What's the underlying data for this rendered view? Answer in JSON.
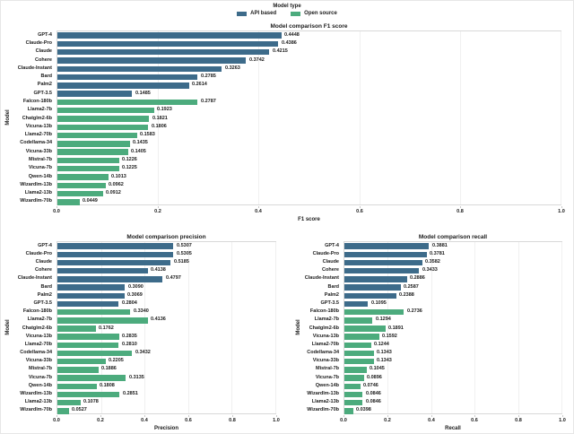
{
  "colors": {
    "api_based": "#3d6b8a",
    "open_source": "#4cab7d",
    "text": "#1a1a1a",
    "spine": "#d8d8d8",
    "grid": "#f0f0f0"
  },
  "legend": {
    "title": "Model type",
    "items": [
      {
        "label": "API based",
        "color": "#3d6b8a",
        "type": "api"
      },
      {
        "label": "Open source",
        "color": "#4cab7d",
        "type": "open"
      }
    ]
  },
  "chart_data": [
    {
      "type": "bar",
      "orientation": "horizontal",
      "title": "Model comparison F1 score",
      "xlabel": "F1 score",
      "ylabel": "Model",
      "xlim": [
        0,
        1
      ],
      "xticks": [
        "0.0",
        "0.2",
        "0.4",
        "0.6",
        "0.8",
        "1.0"
      ],
      "grid": true,
      "legend_position": "top-outside",
      "categories": [
        "GPT-4",
        "Claude-Pro",
        "Claude",
        "Cohere",
        "Claude-Instant",
        "Bard",
        "Palm2",
        "GPT-3.5",
        "Falcon-180b",
        "Llama2-7b",
        "Chatglm2-6b",
        "Vicuna-13b",
        "Llama2-70b",
        "Codellama-34",
        "Vicuna-33b",
        "Mistral-7b",
        "Vicuna-7b",
        "Qwen-14b",
        "Wizardlm-13b",
        "Llama2-13b",
        "Wizardlm-70b"
      ],
      "values": [
        0.4448,
        0.4386,
        0.4215,
        0.3742,
        0.3263,
        0.2785,
        0.2614,
        0.1485,
        0.2787,
        0.1923,
        0.1821,
        0.1806,
        0.1583,
        0.1435,
        0.1405,
        0.1226,
        0.1225,
        0.1013,
        0.0962,
        0.0912,
        0.0449
      ],
      "bar_types": [
        "api",
        "api",
        "api",
        "api",
        "api",
        "api",
        "api",
        "api",
        "open",
        "open",
        "open",
        "open",
        "open",
        "open",
        "open",
        "open",
        "open",
        "open",
        "open",
        "open",
        "open"
      ]
    },
    {
      "type": "bar",
      "orientation": "horizontal",
      "title": "Model comparison precision",
      "xlabel": "Precision",
      "ylabel": "Model",
      "xlim": [
        0,
        1
      ],
      "xticks": [
        "0.0",
        "0.2",
        "0.4",
        "0.6",
        "0.8",
        "1.0"
      ],
      "grid": true,
      "categories": [
        "GPT-4",
        "Claude-Pro",
        "Claude",
        "Cohere",
        "Claude-Instant",
        "Bard",
        "Palm2",
        "GPT-3.5",
        "Falcon-180b",
        "Llama2-7b",
        "Chatglm2-6b",
        "Vicuna-13b",
        "Llama2-70b",
        "Codellama-34",
        "Vicuna-33b",
        "Mistral-7b",
        "Vicuna-7b",
        "Qwen-14b",
        "Wizardlm-13b",
        "Llama2-13b",
        "Wizardlm-70b"
      ],
      "values": [
        0.5307,
        0.5305,
        0.5185,
        0.4138,
        0.4797,
        0.309,
        0.3069,
        0.2804,
        0.334,
        0.4136,
        0.1762,
        0.2835,
        0.281,
        0.3432,
        0.2205,
        0.1886,
        0.3135,
        0.1808,
        0.2851,
        0.1078,
        0.0527
      ],
      "bar_types": [
        "api",
        "api",
        "api",
        "api",
        "api",
        "api",
        "api",
        "api",
        "open",
        "open",
        "open",
        "open",
        "open",
        "open",
        "open",
        "open",
        "open",
        "open",
        "open",
        "open",
        "open"
      ]
    },
    {
      "type": "bar",
      "orientation": "horizontal",
      "title": "Model comparison recall",
      "xlabel": "Recall",
      "ylabel": "Model",
      "xlim": [
        0,
        1
      ],
      "xticks": [
        "0.0",
        "0.2",
        "0.4",
        "0.6",
        "0.8",
        "1.0"
      ],
      "grid": true,
      "categories": [
        "GPT-4",
        "Claude-Pro",
        "Claude",
        "Cohere",
        "Claude-Instant",
        "Bard",
        "Palm2",
        "GPT-3.5",
        "Falcon-180b",
        "Llama2-7b",
        "Chatglm2-6b",
        "Vicuna-13b",
        "Llama2-70b",
        "Codellama-34",
        "Vicuna-33b",
        "Mistral-7b",
        "Vicuna-7b",
        "Qwen-14b",
        "Wizardlm-13b",
        "Llama2-13b",
        "Wizardlm-70b"
      ],
      "values": [
        0.3881,
        0.3781,
        0.3582,
        0.3433,
        0.2886,
        0.2587,
        0.2388,
        0.1095,
        0.2736,
        0.1294,
        0.1891,
        0.1592,
        0.1244,
        0.1343,
        0.1343,
        0.1045,
        0.0896,
        0.0746,
        0.0846,
        0.0846,
        0.0398
      ],
      "bar_types": [
        "api",
        "api",
        "api",
        "api",
        "api",
        "api",
        "api",
        "api",
        "open",
        "open",
        "open",
        "open",
        "open",
        "open",
        "open",
        "open",
        "open",
        "open",
        "open",
        "open",
        "open"
      ]
    }
  ]
}
